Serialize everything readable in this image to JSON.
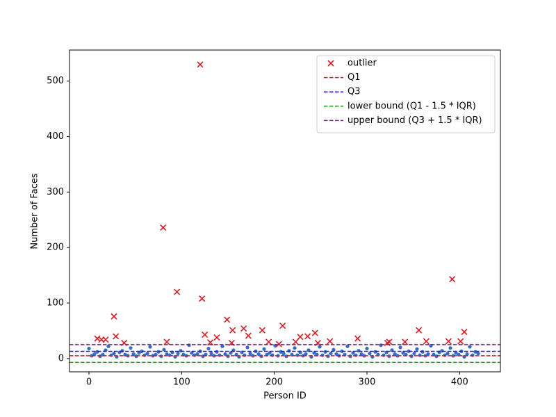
{
  "chart_data": {
    "type": "scatter",
    "xlabel": "Person ID",
    "ylabel": "Number of Faces",
    "xlim": [
      -21,
      444
    ],
    "ylim": [
      -24,
      556
    ],
    "xticks": [
      0,
      100,
      200,
      300,
      400
    ],
    "yticks": [
      0,
      100,
      200,
      300,
      400,
      500
    ],
    "legend": "upper right",
    "series": [
      {
        "color": "#2f6fc4",
        "marker": "dot",
        "x": [
          0,
          3,
          6,
          9,
          12,
          15,
          18,
          21,
          24,
          27,
          30,
          33,
          36,
          39,
          42,
          45,
          48,
          51,
          54,
          57,
          60,
          63,
          66,
          69,
          72,
          75,
          78,
          81,
          84,
          87,
          90,
          93,
          96,
          99,
          102,
          105,
          108,
          111,
          114,
          117,
          120,
          123,
          126,
          129,
          132,
          135,
          138,
          141,
          144,
          147,
          150,
          153,
          156,
          159,
          162,
          165,
          168,
          171,
          174,
          177,
          180,
          183,
          186,
          189,
          192,
          195,
          198,
          201,
          204,
          207,
          210,
          213,
          216,
          219,
          222,
          225,
          228,
          231,
          234,
          237,
          240,
          243,
          246,
          249,
          252,
          255,
          258,
          261,
          264,
          267,
          270,
          273,
          276,
          279,
          282,
          285,
          288,
          291,
          294,
          297,
          300,
          303,
          306,
          309,
          312,
          315,
          318,
          321,
          324,
          327,
          330,
          333,
          336,
          339,
          342,
          345,
          348,
          351,
          354,
          357,
          360,
          363,
          366,
          369,
          372,
          375,
          378,
          381,
          384,
          387,
          390,
          393,
          396,
          399,
          402,
          405,
          408,
          411,
          414,
          417,
          420
        ],
        "values": [
          18,
          5,
          8,
          12,
          4,
          7,
          15,
          22,
          6,
          9,
          3,
          11,
          14,
          7,
          5,
          19,
          8,
          4,
          10,
          13,
          6,
          9,
          21,
          5,
          7,
          12,
          4,
          16,
          8,
          6,
          11,
          3,
          9,
          14,
          7,
          5,
          24,
          10,
          6,
          8,
          13,
          4,
          7,
          18,
          9,
          5,
          12,
          6,
          22,
          8,
          4,
          10,
          15,
          7,
          3,
          11,
          6,
          20,
          9,
          5,
          13,
          8,
          4,
          17,
          7,
          10,
          6,
          23,
          5,
          12,
          9,
          4,
          14,
          7,
          19,
          6,
          11,
          5,
          8,
          15,
          3,
          10,
          7,
          21,
          6,
          12,
          4,
          9,
          16,
          8,
          5,
          13,
          7,
          22,
          4,
          10,
          6,
          14,
          8,
          5,
          18,
          9,
          3,
          12,
          7,
          24,
          6,
          11,
          4,
          15,
          8,
          5,
          20,
          10,
          7,
          13,
          4,
          9,
          17,
          6,
          12,
          5,
          8,
          23,
          7,
          4,
          11,
          14,
          6,
          9,
          19,
          5,
          10,
          7,
          13,
          3,
          8,
          21,
          6,
          12,
          9
        ]
      },
      {
        "name": "outlier",
        "color": "#e8161b",
        "marker": "x",
        "x": [
          9,
          13.5,
          18,
          27,
          29,
          38,
          80,
          84,
          95,
          120,
          122,
          125,
          131,
          138,
          149,
          154,
          155,
          167,
          172,
          187,
          194,
          205,
          209,
          223,
          228,
          236,
          244,
          247,
          260,
          290,
          322,
          324,
          341,
          356,
          364,
          388,
          392,
          401,
          405
        ],
        "values": [
          36,
          34,
          34,
          76,
          40,
          28,
          236,
          30,
          120,
          530,
          108,
          43,
          29,
          38,
          70,
          28,
          51,
          54,
          41,
          51,
          30,
          26,
          59,
          30,
          39,
          40,
          46,
          28,
          31,
          36,
          28,
          30,
          30,
          51,
          31,
          31,
          143,
          31,
          48
        ]
      }
    ],
    "hlines": [
      {
        "name": "Q1",
        "color": "#e8161b",
        "value": 5
      },
      {
        "name": "Q3",
        "color": "#1a1ae0",
        "value": 13
      },
      {
        "name": "lower bound (Q1 - 1.5 * IQR)",
        "color": "#159a15",
        "value": -7
      },
      {
        "name": "upper bound (Q3 + 1.5 * IQR)",
        "color": "#7d1a8c",
        "value": 25
      }
    ]
  }
}
